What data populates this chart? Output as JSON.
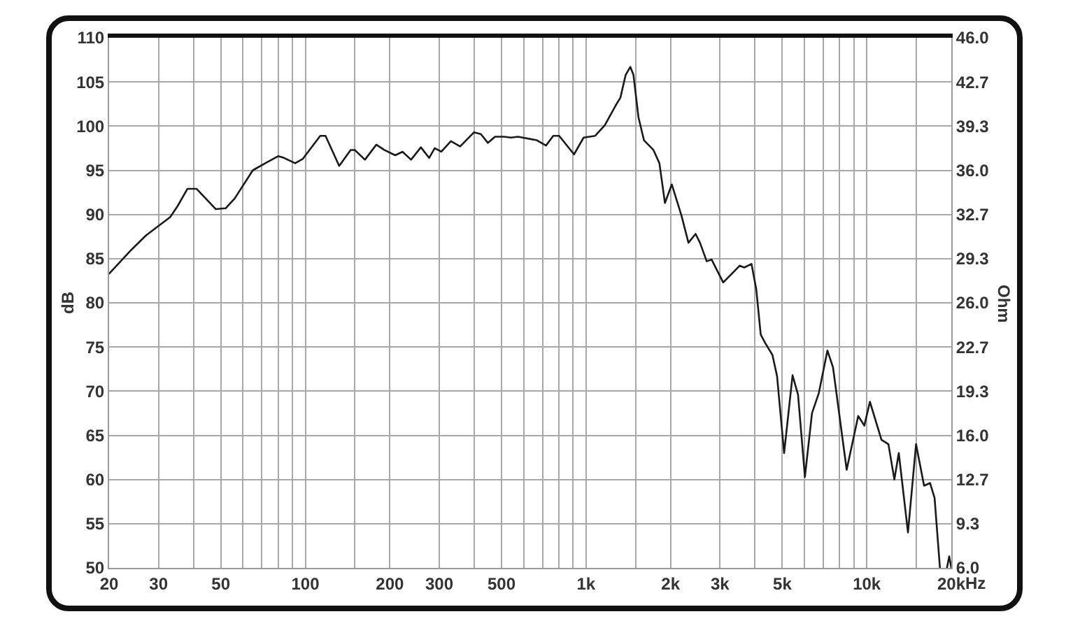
{
  "chart_data": {
    "type": "line",
    "xlabel": "Hz",
    "ylabel": "dB",
    "y2label": "Ohm",
    "log": "x",
    "grid": true,
    "line_style": "solid",
    "color": "#1a1a1a",
    "xlim": [
      20,
      20000
    ],
    "ylim": [
      50,
      110
    ],
    "y2lim": [
      6,
      46
    ],
    "xticks": [
      20,
      30,
      {
        "value": 40,
        "label": null
      },
      50,
      {
        "value": 60,
        "label": null
      },
      {
        "value": 70,
        "label": null
      },
      {
        "value": 80,
        "label": null
      },
      {
        "value": 90,
        "label": null
      },
      100,
      {
        "value": 150,
        "label": null
      },
      200,
      300,
      {
        "value": 400,
        "label": null
      },
      500,
      {
        "value": 600,
        "label": null
      },
      {
        "value": 700,
        "label": null
      },
      {
        "value": 800,
        "label": null
      },
      {
        "value": 900,
        "label": null
      },
      {
        "value": 1000,
        "label": "1k"
      },
      {
        "value": 1500,
        "label": null
      },
      {
        "value": 2000,
        "label": "2k"
      },
      {
        "value": 3000,
        "label": "3k"
      },
      {
        "value": 4000,
        "label": null
      },
      {
        "value": 5000,
        "label": "5k"
      },
      {
        "value": 6000,
        "label": null
      },
      {
        "value": 7000,
        "label": null
      },
      {
        "value": 8000,
        "label": null
      },
      {
        "value": 9000,
        "label": null
      },
      {
        "value": 10000,
        "label": "10k"
      },
      {
        "value": 15000,
        "label": null
      },
      {
        "value": 20000,
        "label": "20k"
      }
    ],
    "yticks": [
      50,
      55,
      60,
      65,
      70,
      75,
      80,
      85,
      90,
      95,
      100,
      105,
      110
    ],
    "y2ticks": [
      {
        "value": 6,
        "label": "6.0"
      },
      {
        "value": 9.333,
        "label": "9.3"
      },
      {
        "value": 12.667,
        "label": "12.7"
      },
      {
        "value": 16,
        "label": "16.0"
      },
      {
        "value": 19.333,
        "label": "19.3"
      },
      {
        "value": 22.667,
        "label": "22.7"
      },
      {
        "value": 26,
        "label": "26.0"
      },
      {
        "value": 29.333,
        "label": "29.3"
      },
      {
        "value": 32.667,
        "label": "32.7"
      },
      {
        "value": 36,
        "label": "36.0"
      },
      {
        "value": 39.333,
        "label": "39.3"
      },
      {
        "value": 42.667,
        "label": "42.7"
      },
      {
        "value": 46,
        "label": "46.0"
      }
    ],
    "x": [
      20,
      24,
      27,
      30,
      33,
      35,
      38,
      41,
      48,
      52,
      56,
      65,
      72,
      80,
      84,
      92,
      98,
      113,
      118,
      132,
      145,
      150,
      163,
      179,
      191,
      209,
      222,
      238,
      258,
      276,
      289,
      305,
      330,
      356,
      399,
      422,
      447,
      474,
      510,
      540,
      572,
      668,
      720,
      764,
      802,
      906,
      980,
      1078,
      1166,
      1278,
      1325,
      1384,
      1438,
      1475,
      1537,
      1608,
      1738,
      1825,
      1910,
      2020,
      2186,
      2316,
      2455,
      2546,
      2690,
      2800,
      3080,
      3260,
      3527,
      3660,
      3885,
      4040,
      4190,
      4355,
      4612,
      4790,
      5076,
      5440,
      5690,
      6020,
      6380,
      6750,
      7240,
      7580,
      8480,
      9320,
      9800,
      10260,
      11280,
      11940,
      12540,
      13000,
      14020,
      14980,
      16000,
      16800,
      17440,
      18220,
      18800,
      19300,
      19660,
      20000
    ],
    "values": [
      83.3,
      86.0,
      87.6,
      88.7,
      89.7,
      90.9,
      92.9,
      92.9,
      90.6,
      90.7,
      91.8,
      95.0,
      95.8,
      96.6,
      96.4,
      95.8,
      96.3,
      98.9,
      98.9,
      95.5,
      97.3,
      97.3,
      96.2,
      97.9,
      97.3,
      96.7,
      97.1,
      96.2,
      97.6,
      96.4,
      97.5,
      97.1,
      98.3,
      97.7,
      99.3,
      99.1,
      98.1,
      98.8,
      98.8,
      98.7,
      98.8,
      98.4,
      97.8,
      98.9,
      98.9,
      96.8,
      98.7,
      98.9,
      100.1,
      102.4,
      103.2,
      105.8,
      106.7,
      105.8,
      101.0,
      98.4,
      97.3,
      95.8,
      91.3,
      93.4,
      89.9,
      86.8,
      87.8,
      86.8,
      84.7,
      84.9,
      82.3,
      83.1,
      84.2,
      84.0,
      84.4,
      81.5,
      76.4,
      75.4,
      74.1,
      71.7,
      63.0,
      71.8,
      69.6,
      60.3,
      67.5,
      69.8,
      74.6,
      72.7,
      61.1,
      67.2,
      66.1,
      68.8,
      64.5,
      64.0,
      60.0,
      63.0,
      54.0,
      64.0,
      59.3,
      59.6,
      57.9,
      50.0,
      null,
      50.0,
      51.3,
      50.0
    ]
  }
}
